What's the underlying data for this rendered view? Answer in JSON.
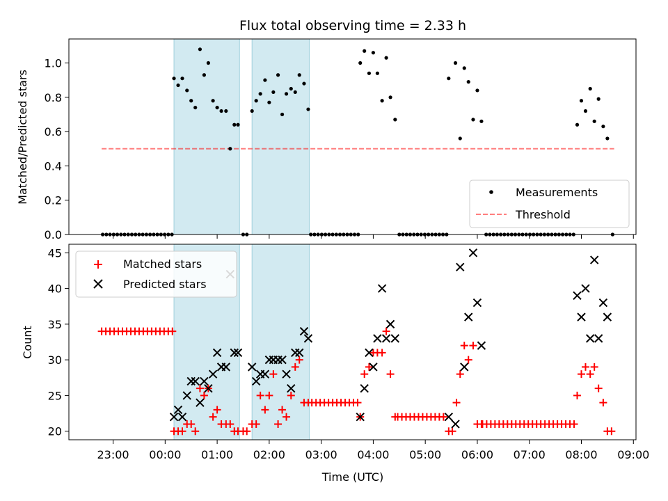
{
  "chart_data": {
    "type": "scatter",
    "title": "Flux total observing time = 2.33 h",
    "xlabel": "Time (UTC)",
    "x_unit": "hours (UTC, values >= 24 are the following day)",
    "xlim": [
      22.15,
      33.05
    ],
    "xticks": [
      23,
      24,
      25,
      26,
      27,
      28,
      29,
      30,
      31,
      32,
      33
    ],
    "xtick_labels": [
      "23:00",
      "00:00",
      "01:00",
      "02:00",
      "03:00",
      "04:00",
      "05:00",
      "06:00",
      "07:00",
      "08:00",
      "09:00"
    ],
    "shaded_intervals": [
      [
        24.17,
        25.43
      ],
      [
        25.67,
        26.77
      ]
    ],
    "shade_color": "#add8e6",
    "top": {
      "ylabel": "Matched/Predicted stars",
      "ylim": [
        0,
        1.14
      ],
      "yticks": [
        0.0,
        0.2,
        0.4,
        0.6,
        0.8,
        1.0
      ],
      "ytick_labels": [
        "0.0",
        "0.2",
        "0.4",
        "0.6",
        "0.8",
        "1.0"
      ],
      "legend_position": "bottom-right",
      "threshold": {
        "name": "Threshold",
        "value": 0.5,
        "x_start": 22.78,
        "x_end": 32.63,
        "color": "#ff0000",
        "alpha": 0.5,
        "style": "dashed"
      },
      "series": [
        {
          "name": "Measurements",
          "marker": "dot",
          "color": "#000000",
          "x": [
            22.8,
            22.87,
            22.94,
            23.01,
            23.08,
            23.15,
            23.22,
            23.29,
            23.36,
            23.43,
            23.5,
            23.57,
            23.64,
            23.71,
            23.78,
            23.85,
            23.92,
            23.99,
            24.06,
            24.13,
            24.17,
            24.25,
            24.33,
            24.42,
            24.5,
            24.58,
            24.67,
            24.75,
            24.83,
            24.92,
            25.0,
            25.08,
            25.17,
            25.25,
            25.33,
            25.4,
            25.5,
            25.57,
            25.67,
            25.75,
            25.83,
            25.92,
            26.0,
            26.08,
            26.17,
            26.25,
            26.33,
            26.42,
            26.5,
            26.58,
            26.67,
            26.75,
            26.8,
            26.87,
            26.94,
            27.01,
            27.08,
            27.15,
            27.22,
            27.29,
            27.36,
            27.43,
            27.5,
            27.57,
            27.64,
            27.71,
            27.75,
            27.83,
            27.92,
            28.0,
            28.08,
            28.17,
            28.25,
            28.33,
            28.42,
            28.5,
            28.57,
            28.64,
            28.71,
            28.78,
            28.85,
            28.92,
            28.99,
            29.06,
            29.13,
            29.2,
            29.27,
            29.34,
            29.41,
            29.45,
            29.58,
            29.67,
            29.75,
            29.83,
            29.92,
            30.0,
            30.08,
            30.17,
            30.24,
            30.31,
            30.38,
            30.45,
            30.52,
            30.59,
            30.66,
            30.73,
            30.8,
            30.87,
            30.94,
            31.01,
            31.08,
            31.15,
            31.22,
            31.29,
            31.36,
            31.43,
            31.5,
            31.57,
            31.64,
            31.71,
            31.78,
            31.85,
            31.92,
            32.0,
            32.08,
            32.17,
            32.25,
            32.33,
            32.42,
            32.5,
            32.6
          ],
          "y": [
            0,
            0,
            0,
            0,
            0,
            0,
            0,
            0,
            0,
            0,
            0,
            0,
            0,
            0,
            0,
            0,
            0,
            0,
            0,
            0,
            0.91,
            0.87,
            0.91,
            0.84,
            0.78,
            0.74,
            1.08,
            0.93,
            1.0,
            0.78,
            0.74,
            0.72,
            0.72,
            0.5,
            0.64,
            0.64,
            0,
            0,
            0.72,
            0.78,
            0.82,
            0.9,
            0.77,
            0.83,
            0.93,
            0.7,
            0.82,
            0.85,
            0.83,
            0.93,
            0.88,
            0.73,
            0,
            0,
            0,
            0,
            0,
            0,
            0,
            0,
            0,
            0,
            0,
            0,
            0,
            0,
            1.0,
            1.07,
            0.94,
            1.06,
            0.94,
            0.78,
            1.03,
            0.8,
            0.67,
            0,
            0,
            0,
            0,
            0,
            0,
            0,
            0,
            0,
            0,
            0,
            0,
            0,
            0,
            0.91,
            1.0,
            0.56,
            0.97,
            0.89,
            0.67,
            0.84,
            0.66,
            0,
            0,
            0,
            0,
            0,
            0,
            0,
            0,
            0,
            0,
            0,
            0,
            0,
            0,
            0,
            0,
            0,
            0,
            0,
            0,
            0,
            0,
            0,
            0,
            0,
            0.64,
            0.78,
            0.72,
            0.85,
            0.66,
            0.79,
            0.63,
            0.56,
            0
          ]
        }
      ]
    },
    "bottom": {
      "ylabel": "Count",
      "ylim": [
        18.8,
        46.2
      ],
      "yticks": [
        20,
        25,
        30,
        35,
        40,
        45
      ],
      "ytick_labels": [
        "20",
        "25",
        "30",
        "35",
        "40",
        "45"
      ],
      "legend_position": "top-left",
      "series": [
        {
          "name": "Matched stars",
          "marker": "plus",
          "color": "#ff0000",
          "x": [
            22.78,
            22.86,
            22.94,
            23.02,
            23.1,
            23.18,
            23.26,
            23.34,
            23.42,
            23.5,
            23.58,
            23.66,
            23.74,
            23.82,
            23.9,
            23.98,
            24.06,
            24.14,
            24.17,
            24.25,
            24.33,
            24.42,
            24.5,
            24.58,
            24.67,
            24.75,
            24.83,
            24.92,
            25.0,
            25.08,
            25.17,
            25.25,
            25.33,
            25.4,
            25.5,
            25.57,
            25.67,
            25.75,
            25.83,
            25.92,
            26.0,
            26.08,
            26.17,
            26.25,
            26.33,
            26.42,
            26.5,
            26.58,
            26.67,
            26.75,
            26.82,
            26.9,
            26.98,
            27.06,
            27.14,
            27.22,
            27.3,
            27.38,
            27.46,
            27.54,
            27.62,
            27.7,
            27.75,
            27.83,
            27.92,
            28.0,
            28.08,
            28.17,
            28.25,
            28.33,
            28.42,
            28.47,
            28.55,
            28.63,
            28.71,
            28.79,
            28.87,
            28.95,
            29.03,
            29.11,
            29.19,
            29.27,
            29.35,
            29.45,
            29.52,
            29.6,
            29.67,
            29.75,
            29.83,
            29.92,
            30.0,
            30.08,
            30.1,
            30.18,
            30.26,
            30.34,
            30.42,
            30.5,
            30.58,
            30.66,
            30.74,
            30.82,
            30.9,
            30.98,
            31.06,
            31.14,
            31.22,
            31.3,
            31.38,
            31.46,
            31.54,
            31.62,
            31.7,
            31.78,
            31.86,
            31.92,
            32.0,
            32.08,
            32.17,
            32.25,
            32.33,
            32.42,
            32.5,
            32.58
          ],
          "y": [
            34,
            34,
            34,
            34,
            34,
            34,
            34,
            34,
            34,
            34,
            34,
            34,
            34,
            34,
            34,
            34,
            34,
            34,
            20,
            20,
            20,
            21,
            21,
            20,
            26,
            25,
            26,
            22,
            23,
            21,
            21,
            21,
            20,
            20,
            20,
            20,
            21,
            21,
            25,
            23,
            25,
            28,
            21,
            23,
            22,
            25,
            29,
            30,
            24,
            24,
            24,
            24,
            24,
            24,
            24,
            24,
            24,
            24,
            24,
            24,
            24,
            24,
            22,
            28,
            29,
            31,
            31,
            31,
            34,
            28,
            22,
            22,
            22,
            22,
            22,
            22,
            22,
            22,
            22,
            22,
            22,
            22,
            22,
            20,
            20,
            24,
            28,
            32,
            30,
            32,
            21,
            21,
            21,
            21,
            21,
            21,
            21,
            21,
            21,
            21,
            21,
            21,
            21,
            21,
            21,
            21,
            21,
            21,
            21,
            21,
            21,
            21,
            21,
            21,
            21,
            25,
            28,
            29,
            28,
            29,
            26,
            24,
            20,
            20
          ]
        },
        {
          "name": "Predicted stars",
          "marker": "x",
          "color": "#000000",
          "x": [
            24.17,
            24.25,
            24.33,
            24.42,
            24.5,
            24.58,
            24.67,
            24.75,
            24.83,
            24.92,
            25.0,
            25.08,
            25.17,
            25.25,
            25.33,
            25.4,
            25.67,
            25.75,
            25.83,
            25.92,
            26.0,
            26.08,
            26.17,
            26.25,
            26.33,
            26.42,
            26.5,
            26.58,
            26.67,
            26.75,
            27.75,
            27.83,
            27.92,
            28.0,
            28.08,
            28.17,
            28.25,
            28.33,
            28.42,
            29.45,
            29.58,
            29.67,
            29.75,
            29.83,
            29.92,
            30.0,
            30.08,
            31.92,
            32.0,
            32.08,
            32.17,
            32.25,
            32.33,
            32.42,
            32.5
          ],
          "y": [
            22,
            23,
            22,
            25,
            27,
            27,
            24,
            27,
            26,
            28,
            31,
            29,
            29,
            42,
            31,
            31,
            29,
            27,
            28,
            28,
            30,
            30,
            30,
            30,
            28,
            26,
            31,
            31,
            34,
            33,
            22,
            26,
            31,
            29,
            33,
            40,
            33,
            35,
            33,
            22,
            21,
            43,
            29,
            36,
            45,
            38,
            32,
            39,
            36,
            40,
            33,
            44,
            33,
            38,
            36
          ]
        }
      ]
    }
  }
}
